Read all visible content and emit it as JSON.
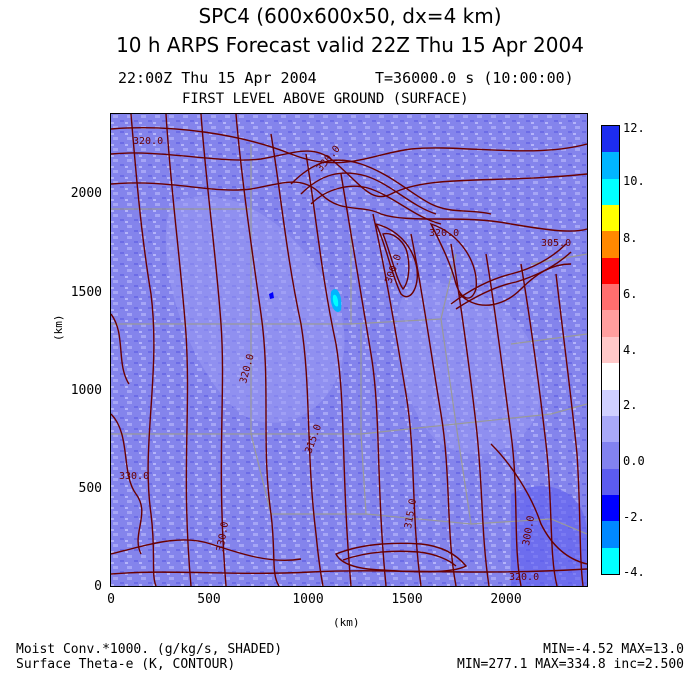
{
  "header": {
    "title_line1": "SPC4 (600x600x50, dx=4 km)",
    "title_line2": "10 h ARPS Forecast valid 22Z Thu 15 Apr 2004",
    "time_label": "22:00Z Thu 15 Apr 2004",
    "time_seconds": "T=36000.0 s (10:00:00)",
    "level_label": "FIRST LEVEL ABOVE GROUND (SURFACE)"
  },
  "axes": {
    "y_ticks": [
      "0",
      "500",
      "1000",
      "1500",
      "2000"
    ],
    "x_ticks": [
      "0",
      "500",
      "1000",
      "1500",
      "2000"
    ],
    "x_unit": "(km)",
    "y_unit": "(km)"
  },
  "contour_labels": [
    "320.0",
    "315.0",
    "330.0",
    "330.0",
    "300.0",
    "320.0",
    "315.0",
    "330.0",
    "320.0",
    "305.0",
    "300.0",
    "320.0"
  ],
  "colorbar": {
    "labels": [
      "12.",
      "10.",
      "8.",
      "6.",
      "4.",
      "2.",
      "0.0",
      "-2.",
      "-4."
    ],
    "colors": [
      "#1d2cf0",
      "#00b5ff",
      "#00ffff",
      "#ffff00",
      "#ff8800",
      "#ff0000",
      "#ff6e6e",
      "#ff9e9e",
      "#ffc8c8",
      "#ffffff",
      "#d0d0ff",
      "#a8a8f8",
      "#8282f0",
      "#5c5cf0",
      "#0000ff",
      "#0088ff",
      "#00ffff"
    ]
  },
  "footer": {
    "shaded_field": "Moist Conv.*1000. (g/kg/s, SHADED)",
    "contour_field": "Surface Theta-e (K, CONTOUR)",
    "shaded_range": "MIN=-4.52 MAX=13.0",
    "contour_range": "MIN=277.1 MAX=334.8 inc=2.500"
  },
  "colors": {
    "map_fill": "#8484ec",
    "contour": "#6a0000",
    "boundaries": "#999999"
  }
}
